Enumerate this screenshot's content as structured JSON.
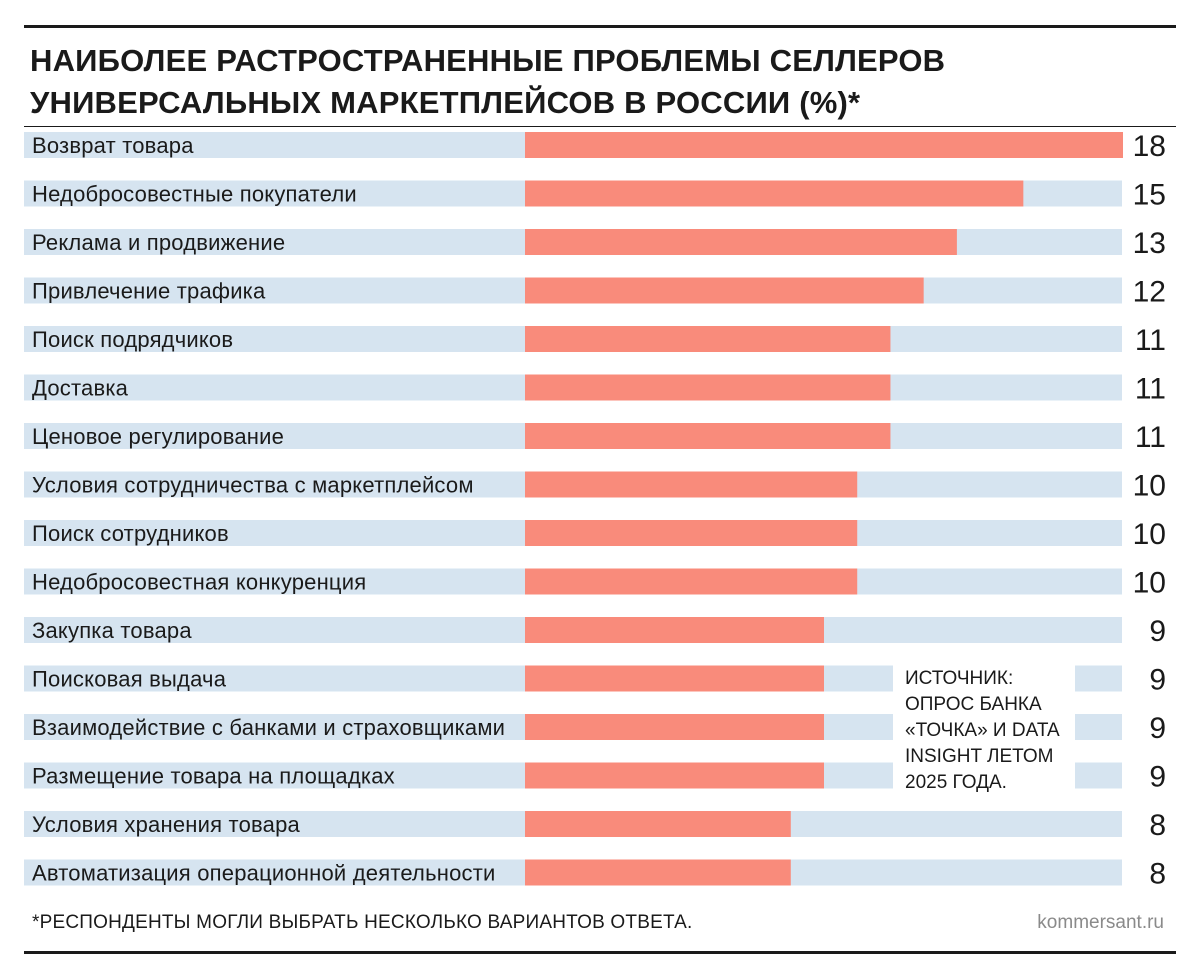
{
  "header": {
    "title_line1": "НАИБОЛЕЕ РАСТРОСТРАНЕННЫЕ ПРОБЛЕМЫ СЕЛЛЕРОВ",
    "title_line2": "УНИВЕРСАЛЬНЫХ МАРКЕТПЛЕЙСОВ В РОССИИ (%)*"
  },
  "source": {
    "lines": [
      "ИСТОЧНИК:",
      "ОПРОС БАНКА",
      "«ТОЧКА» И DATA",
      "INSIGHT ЛЕТОМ",
      "2025 ГОДА."
    ]
  },
  "footer": {
    "footnote": "*РЕСПОНДЕНТЫ МОГЛИ ВЫБРАТЬ НЕСКОЛЬКО ВАРИАНТОВ ОТВЕТА.",
    "brand": "kommersant.ru"
  },
  "colors": {
    "bar": "#f98b7b",
    "track": "#d6e4f0",
    "text": "#1a1a1a"
  },
  "chart_data": {
    "type": "bar",
    "orientation": "horizontal",
    "title": "НАИБОЛЕЕ РАСТРОСТРАНЕННЫЕ ПРОБЛЕМЫ СЕЛЛЕРОВ УНИВЕРСАЛЬНЫХ МАРКЕТПЛЕЙСОВ В РОССИИ (%)*",
    "xlim": [
      0,
      18
    ],
    "grid": false,
    "categories": [
      "Возврат товара",
      "Недобросовестные покупатели",
      "Реклама и продвижение",
      "Привлечение трафика",
      "Поиск подрядчиков",
      "Доставка",
      "Ценовое регулирование",
      "Условия сотрудничества с маркетплейсом",
      "Поиск сотрудников",
      "Недобросовестная конкуренция",
      "Закупка товара",
      "Поисковая выдача",
      "Взаимодействие с банками и страховщиками",
      "Размещение товара на площадках",
      "Условия хранения товара",
      "Автоматизация операционной деятельности"
    ],
    "values": [
      18,
      15,
      13,
      12,
      11,
      11,
      11,
      10,
      10,
      10,
      9,
      9,
      9,
      9,
      8,
      8
    ]
  }
}
